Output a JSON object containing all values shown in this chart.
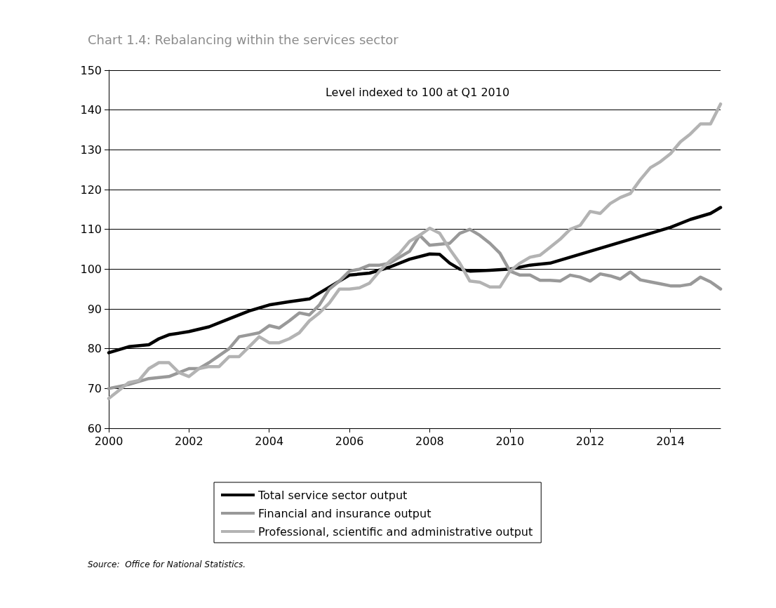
{
  "chart_data": {
    "type": "line",
    "title": "Chart 1.4: Rebalancing within the services sector",
    "subtitle": "Level indexed to 100 at Q1 2010",
    "annotations": [
      "Source:  Office for National Statistics."
    ],
    "xlim": [
      2000,
      2015.25
    ],
    "xticks": [
      2000,
      2002,
      2004,
      2006,
      2008,
      2010,
      2012,
      2014
    ],
    "ylim": [
      60,
      150
    ],
    "yticks": [
      60,
      70,
      80,
      90,
      100,
      110,
      120,
      130,
      140,
      150
    ],
    "grid": "y",
    "legend": "bottom",
    "marker": "none",
    "line_style": "solid",
    "series": [
      {
        "name": "Total service sector output",
        "color": "#000000",
        "x": [
          2000,
          2000.5,
          2001,
          2001.25,
          2001.5,
          2002,
          2002.5,
          2003,
          2003.5,
          2004,
          2004.5,
          2005,
          2005.25,
          2005.5,
          2006,
          2006.5,
          2007,
          2007.5,
          2008,
          2008.25,
          2008.5,
          2008.75,
          2009,
          2009.5,
          2010,
          2010.5,
          2011,
          2011.5,
          2012,
          2012.5,
          2013,
          2013.5,
          2014,
          2014.5,
          2015,
          2015.25
        ],
        "values": [
          79,
          80.5,
          81,
          82.5,
          83.5,
          84.3,
          85.5,
          87.5,
          89.5,
          91,
          91.8,
          92.5,
          94,
          95.5,
          98.5,
          99,
          100.5,
          102.5,
          103.8,
          103.7,
          101.5,
          100,
          99.5,
          99.7,
          100,
          101,
          101.5,
          103,
          104.5,
          106,
          107.5,
          109,
          110.5,
          112.5,
          114,
          115.5
        ]
      },
      {
        "name": "Financial and insurance output",
        "color": "#999999",
        "x": [
          2000,
          2000.5,
          2001,
          2001.5,
          2002,
          2002.25,
          2002.5,
          2003,
          2003.25,
          2003.5,
          2003.75,
          2004,
          2004.25,
          2004.5,
          2004.75,
          2005,
          2005.25,
          2005.5,
          2005.75,
          2006,
          2006.25,
          2006.5,
          2006.75,
          2007,
          2007.5,
          2007.75,
          2008,
          2008.5,
          2008.75,
          2009,
          2009.25,
          2009.5,
          2009.75,
          2010,
          2010.25,
          2010.5,
          2010.75,
          2011,
          2011.25,
          2011.5,
          2011.75,
          2012,
          2012.25,
          2012.5,
          2012.75,
          2013,
          2013.25,
          2013.5,
          2013.75,
          2014,
          2014.25,
          2014.5,
          2014.75,
          2015,
          2015.25
        ],
        "values": [
          70,
          71,
          72.5,
          73,
          75,
          75,
          76.5,
          80,
          83,
          83.5,
          84,
          85.8,
          85.2,
          87,
          89,
          88.5,
          91,
          95,
          97,
          99.5,
          100,
          101,
          101,
          101.5,
          104.5,
          108.5,
          106,
          106.5,
          109,
          110,
          108.5,
          106.5,
          104,
          99.5,
          98.5,
          98.5,
          97.2,
          97.2,
          97,
          98.5,
          98,
          97,
          98.8,
          98.3,
          97.5,
          99.3,
          97.3,
          96.8,
          96.3,
          95.8,
          95.8,
          96.2,
          98,
          96.8,
          95
        ]
      },
      {
        "name": "Professional, scientific and administrative output",
        "color": "#b3b3b3",
        "x": [
          2000,
          2000.25,
          2000.5,
          2000.75,
          2001,
          2001.25,
          2001.5,
          2001.75,
          2002,
          2002.25,
          2002.5,
          2002.75,
          2003,
          2003.25,
          2003.5,
          2003.75,
          2004,
          2004.25,
          2004.5,
          2004.75,
          2005,
          2005.25,
          2005.5,
          2005.75,
          2006,
          2006.25,
          2006.5,
          2006.75,
          2007,
          2007.25,
          2007.5,
          2007.75,
          2008,
          2008.25,
          2008.5,
          2008.75,
          2009,
          2009.25,
          2009.5,
          2009.75,
          2010,
          2010.25,
          2010.5,
          2010.75,
          2011,
          2011.25,
          2011.5,
          2011.75,
          2012,
          2012.25,
          2012.5,
          2012.75,
          2013,
          2013.25,
          2013.5,
          2013.75,
          2014,
          2014.25,
          2014.5,
          2014.75,
          2015,
          2015.25
        ],
        "values": [
          67.5,
          69.5,
          71.5,
          72,
          75,
          76.5,
          76.5,
          74,
          73,
          75,
          75.5,
          75.5,
          78,
          78,
          80.5,
          83,
          81.5,
          81.5,
          82.5,
          84,
          87,
          89,
          91.5,
          95,
          95,
          95.3,
          96.5,
          99.5,
          102,
          104,
          107,
          108.5,
          110.3,
          109,
          105,
          101.5,
          97,
          96.7,
          95.5,
          95.5,
          99.5,
          101.5,
          103,
          103.5,
          105.5,
          107.5,
          110,
          111,
          114.5,
          114,
          116.5,
          118,
          119,
          122.5,
          125.5,
          127,
          129,
          132,
          134,
          136.5,
          136.5,
          141.5
        ]
      }
    ]
  }
}
